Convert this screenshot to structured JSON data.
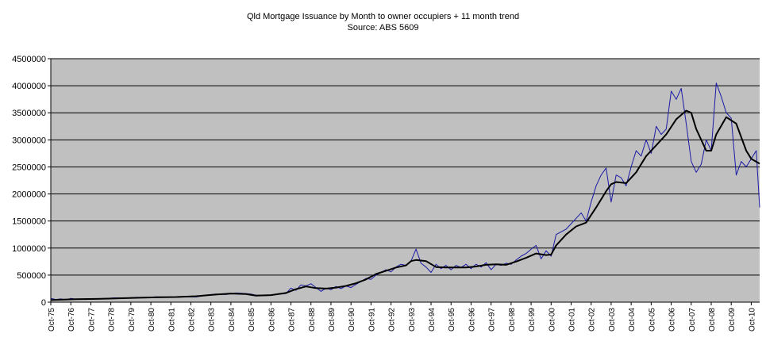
{
  "chart_data": {
    "type": "line",
    "title": "Qld Mortgage Issuance by Month to owner occupiers + 11 month trend",
    "subtitle": "Source: ABS 5609",
    "xlabel": "",
    "ylabel": "",
    "ylim": [
      0,
      4500000
    ],
    "yticks": [
      "0",
      "500000",
      "1000000",
      "1500000",
      "2000000",
      "2500000",
      "3000000",
      "3500000",
      "4000000",
      "4500000"
    ],
    "xticks": [
      "Oct-75",
      "Oct-76",
      "Oct-77",
      "Oct-78",
      "Oct-79",
      "Oct-80",
      "Oct-81",
      "Oct-82",
      "Oct-83",
      "Oct-84",
      "Oct-85",
      "Oct-86",
      "Oct-87",
      "Oct-88",
      "Oct-89",
      "Oct-90",
      "Oct-91",
      "Oct-92",
      "Oct-93",
      "Oct-94",
      "Oct-95",
      "Oct-96",
      "Oct-97",
      "Oct-98",
      "Oct-99",
      "Oct-00",
      "Oct-01",
      "Oct-02",
      "Oct-03",
      "Oct-04",
      "Oct-05",
      "Oct-06",
      "Oct-07",
      "Oct-08",
      "Oct-09",
      "Oct-10"
    ],
    "grid": true,
    "legend": "none",
    "plot_background": "#c0c0c0",
    "series": [
      {
        "color": "#1a1aa6",
        "style": "thin",
        "x": [
          1975.75,
          1976.0,
          1976.25,
          1976.5,
          1976.75,
          1977.0,
          1977.25,
          1977.5,
          1977.75,
          1978.0,
          1978.5,
          1979.0,
          1979.5,
          1980.0,
          1980.5,
          1981.0,
          1981.5,
          1982.0,
          1982.5,
          1983.0,
          1983.5,
          1984.0,
          1984.5,
          1985.0,
          1985.5,
          1985.75,
          1986.0,
          1986.5,
          1987.0,
          1987.5,
          1987.75,
          1988.0,
          1988.25,
          1988.5,
          1988.75,
          1989.0,
          1989.25,
          1989.5,
          1989.75,
          1990.0,
          1990.25,
          1990.5,
          1990.75,
          1991.0,
          1991.25,
          1991.5,
          1991.75,
          1992.0,
          1992.25,
          1992.5,
          1992.75,
          1993.0,
          1993.25,
          1993.5,
          1993.75,
          1994.0,
          1994.25,
          1994.5,
          1994.75,
          1995.0,
          1995.25,
          1995.5,
          1995.75,
          1996.0,
          1996.25,
          1996.5,
          1996.75,
          1997.0,
          1997.25,
          1997.5,
          1997.75,
          1998.0,
          1998.25,
          1998.5,
          1998.75,
          1999.0,
          1999.25,
          1999.5,
          1999.75,
          2000.0,
          2000.25,
          2000.5,
          2000.75,
          2001.0,
          2001.25,
          2001.5,
          2001.75,
          2002.0,
          2002.25,
          2002.5,
          2002.75,
          2003.0,
          2003.25,
          2003.5,
          2003.75,
          2004.0,
          2004.25,
          2004.5,
          2004.75,
          2005.0,
          2005.25,
          2005.5,
          2005.75,
          2006.0,
          2006.25,
          2006.5,
          2006.75,
          2007.0,
          2007.25,
          2007.5,
          2007.75,
          2008.0,
          2008.25,
          2008.5,
          2008.75,
          2009.0,
          2009.25,
          2009.5,
          2009.75,
          2010.0,
          2010.25,
          2010.5,
          2010.75,
          2011.0,
          2011.17
        ],
        "y": [
          70000,
          50000,
          60000,
          40000,
          70000,
          55000,
          60000,
          50000,
          55000,
          60000,
          70000,
          80000,
          75000,
          90000,
          85000,
          100000,
          95000,
          90000,
          100000,
          95000,
          130000,
          150000,
          140000,
          170000,
          160000,
          150000,
          130000,
          120000,
          140000,
          160000,
          260000,
          220000,
          320000,
          300000,
          340000,
          270000,
          200000,
          260000,
          230000,
          290000,
          250000,
          300000,
          270000,
          330000,
          380000,
          440000,
          420000,
          500000,
          550000,
          600000,
          560000,
          650000,
          700000,
          680000,
          760000,
          980000,
          720000,
          650000,
          550000,
          700000,
          620000,
          680000,
          600000,
          680000,
          640000,
          700000,
          620000,
          700000,
          650000,
          730000,
          600000,
          700000,
          680000,
          720000,
          700000,
          780000,
          850000,
          900000,
          980000,
          1050000,
          800000,
          950000,
          850000,
          1250000,
          1300000,
          1350000,
          1450000,
          1550000,
          1650000,
          1500000,
          1850000,
          2150000,
          2350000,
          2480000,
          1850000,
          2350000,
          2300000,
          2150000,
          2500000,
          2800000,
          2700000,
          3000000,
          2750000,
          3250000,
          3100000,
          3200000,
          3900000,
          3750000,
          3950000,
          3300000,
          2600000,
          2400000,
          2550000,
          3000000,
          2800000,
          4050000,
          3800000,
          3500000,
          3400000,
          2350000,
          2600000,
          2500000,
          2650000,
          2800000,
          1750000
        ]
      },
      {
        "color": "#000000",
        "style": "thick",
        "x": [
          1975.75,
          1977.0,
          1978.0,
          1979.0,
          1980.0,
          1981.0,
          1982.0,
          1983.0,
          1984.0,
          1984.75,
          1985.5,
          1986.0,
          1986.75,
          1987.5,
          1988.0,
          1988.5,
          1989.0,
          1989.5,
          1990.0,
          1990.5,
          1991.0,
          1991.5,
          1992.0,
          1992.5,
          1993.0,
          1993.5,
          1993.75,
          1994.0,
          1994.5,
          1995.0,
          1995.5,
          1996.0,
          1996.5,
          1997.0,
          1997.5,
          1998.0,
          1998.5,
          1999.0,
          1999.5,
          2000.0,
          2000.5,
          2000.75,
          2001.0,
          2001.5,
          2002.0,
          2002.5,
          2003.0,
          2003.5,
          2003.75,
          2004.0,
          2004.5,
          2005.0,
          2005.5,
          2006.0,
          2006.5,
          2007.0,
          2007.5,
          2007.75,
          2008.0,
          2008.5,
          2008.75,
          2009.0,
          2009.5,
          2010.0,
          2010.5,
          2010.75,
          2011.17
        ],
        "y": [
          40000,
          55000,
          60000,
          70000,
          80000,
          90000,
          95000,
          110000,
          140000,
          160000,
          150000,
          120000,
          130000,
          170000,
          240000,
          290000,
          260000,
          250000,
          270000,
          300000,
          350000,
          420000,
          520000,
          580000,
          640000,
          680000,
          760000,
          780000,
          760000,
          650000,
          640000,
          640000,
          640000,
          660000,
          690000,
          700000,
          690000,
          750000,
          820000,
          900000,
          870000,
          880000,
          1050000,
          1250000,
          1400000,
          1470000,
          1750000,
          2050000,
          2180000,
          2220000,
          2200000,
          2400000,
          2700000,
          2900000,
          3100000,
          3380000,
          3540000,
          3500000,
          3200000,
          2800000,
          2800000,
          3100000,
          3420000,
          3300000,
          2800000,
          2650000,
          2560000
        ]
      }
    ]
  }
}
